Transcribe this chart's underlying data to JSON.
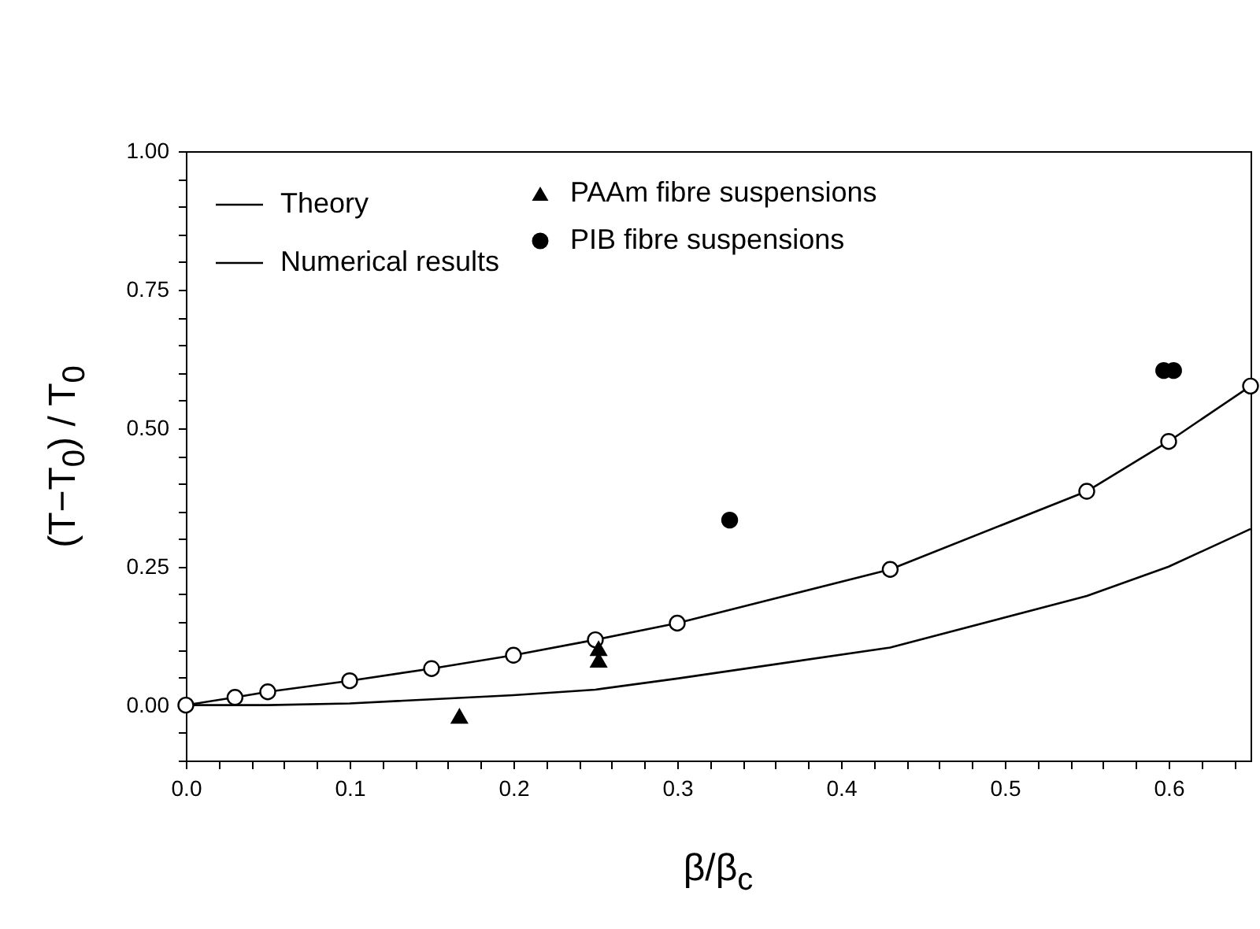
{
  "chart_data": {
    "type": "line",
    "xlabel": "β/β$_{c}$",
    "ylabel": "(T−T$_{0}$) / T$_{0}$",
    "xlim": [
      0,
      0.65
    ],
    "ylim": [
      -0.1,
      1.0
    ],
    "xticks": [
      {
        "value": 0,
        "label": "0.0"
      },
      {
        "value": 0.02,
        "label": null
      },
      {
        "value": 0.04,
        "label": null
      },
      {
        "value": 0.06,
        "label": null
      },
      {
        "value": 0.08,
        "label": null
      },
      {
        "value": 0.1,
        "label": "0.1"
      },
      {
        "value": 0.12,
        "label": null
      },
      {
        "value": 0.14,
        "label": null
      },
      {
        "value": 0.16,
        "label": null
      },
      {
        "value": 0.18,
        "label": null
      },
      {
        "value": 0.2,
        "label": "0.2"
      },
      {
        "value": 0.22,
        "label": null
      },
      {
        "value": 0.24,
        "label": null
      },
      {
        "value": 0.26,
        "label": null
      },
      {
        "value": 0.28,
        "label": null
      },
      {
        "value": 0.3,
        "label": "0.3"
      },
      {
        "value": 0.32,
        "label": null
      },
      {
        "value": 0.34,
        "label": null
      },
      {
        "value": 0.36,
        "label": null
      },
      {
        "value": 0.38,
        "label": null
      },
      {
        "value": 0.4,
        "label": "0.4"
      },
      {
        "value": 0.42,
        "label": null
      },
      {
        "value": 0.44,
        "label": null
      },
      {
        "value": 0.46,
        "label": null
      },
      {
        "value": 0.48,
        "label": null
      },
      {
        "value": 0.5,
        "label": "0.5"
      },
      {
        "value": 0.52,
        "label": null
      },
      {
        "value": 0.54,
        "label": null
      },
      {
        "value": 0.56,
        "label": null
      },
      {
        "value": 0.58,
        "label": null
      },
      {
        "value": 0.6,
        "label": "0.6"
      },
      {
        "value": 0.62,
        "label": null
      },
      {
        "value": 0.64,
        "label": null
      }
    ],
    "yticks": [
      {
        "value": -0.1,
        "label": null
      },
      {
        "value": -0.05,
        "label": null
      },
      {
        "value": 0,
        "label": "0.00"
      },
      {
        "value": 0.05,
        "label": null
      },
      {
        "value": 0.1,
        "label": null
      },
      {
        "value": 0.15,
        "label": null
      },
      {
        "value": 0.2,
        "label": null
      },
      {
        "value": 0.25,
        "label": "0.25"
      },
      {
        "value": 0.3,
        "label": null
      },
      {
        "value": 0.35,
        "label": null
      },
      {
        "value": 0.4,
        "label": null
      },
      {
        "value": 0.45,
        "label": null
      },
      {
        "value": 0.5,
        "label": "0.50"
      },
      {
        "value": 0.55,
        "label": null
      },
      {
        "value": 0.6,
        "label": null
      },
      {
        "value": 0.65,
        "label": null
      },
      {
        "value": 0.7,
        "label": null
      },
      {
        "value": 0.75,
        "label": "0.75"
      },
      {
        "value": 0.8,
        "label": null
      },
      {
        "value": 0.85,
        "label": null
      },
      {
        "value": 0.9,
        "label": null
      },
      {
        "value": 0.95,
        "label": null
      },
      {
        "value": 1.0,
        "label": "1.00"
      }
    ],
    "grid": false,
    "legend": "top left",
    "line_style": "solid",
    "series": [
      {
        "name": "Theory",
        "type": "line",
        "marker": "none",
        "color": "#000000",
        "x": [
          0,
          0.05,
          0.1,
          0.2,
          0.25,
          0.3,
          0.43,
          0.55,
          0.6,
          0.65
        ],
        "values": [
          0,
          0,
          0.003,
          0.018,
          0.028,
          0.048,
          0.104,
          0.197,
          0.25,
          0.318
        ]
      },
      {
        "name": "Numerical results",
        "type": "line",
        "marker": "circle",
        "color": "#000000",
        "x": [
          0,
          0.03,
          0.05,
          0.1,
          0.15,
          0.2,
          0.25,
          0.3,
          0.43,
          0.55,
          0.6,
          0.65
        ],
        "values": [
          0,
          0.014,
          0.024,
          0.044,
          0.066,
          0.09,
          0.118,
          0.148,
          0.245,
          0.386,
          0.476,
          0.576
        ]
      },
      {
        "name": "PAAm fibre suspensions",
        "type": "scatter",
        "marker": "triangle",
        "color": "#000000",
        "x": [
          0.167,
          0.252,
          0.252
        ],
        "values": [
          -0.02,
          0.102,
          0.081
        ]
      },
      {
        "name": "PIB fibre suspensions",
        "type": "scatter",
        "marker": "circle",
        "color": "#000000",
        "x": [
          0.332,
          0.597,
          0.603
        ],
        "values": [
          0.334,
          0.604,
          0.604
        ]
      }
    ]
  }
}
